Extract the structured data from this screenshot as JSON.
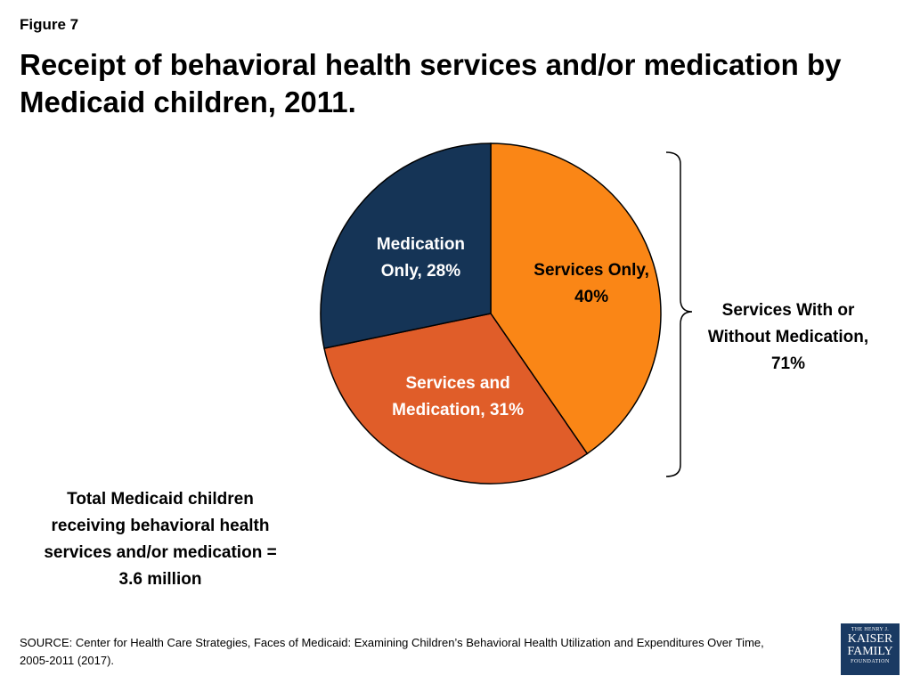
{
  "figure_label": "Figure 7",
  "title": "Receipt of behavioral health services and/or medication by Medicaid children, 2011.",
  "chart_data": {
    "type": "pie",
    "title": "Receipt of behavioral health services and/or medication by Medicaid children, 2011.",
    "slices": [
      {
        "name": "Services Only",
        "value": 40,
        "label_lines": [
          "Services Only,",
          "40%"
        ],
        "color": "#fa8616"
      },
      {
        "name": "Services and Medication",
        "value": 31,
        "label_lines": [
          "Services and",
          "Medication, 31%"
        ],
        "color": "#e05d29"
      },
      {
        "name": "Medication Only",
        "value": 28,
        "label_lines": [
          "Medication",
          "Only, 28%"
        ],
        "color": "#153456"
      }
    ],
    "bracket_annotation": "Services With or Without Medication, 71%"
  },
  "total_note": "Total Medicaid children receiving behavioral health services and/or medication = 3.6 million",
  "source": "SOURCE:  Center for Health Care Strategies, Faces of Medicaid:  Examining Children’s Behavioral Health Utilization and Expenditures Over Time, 2005-2011 (2017).",
  "logo": {
    "line1": "THE HENRY J.",
    "line2": "KAISER",
    "line3": "FAMILY",
    "line4": "FOUNDATION"
  }
}
